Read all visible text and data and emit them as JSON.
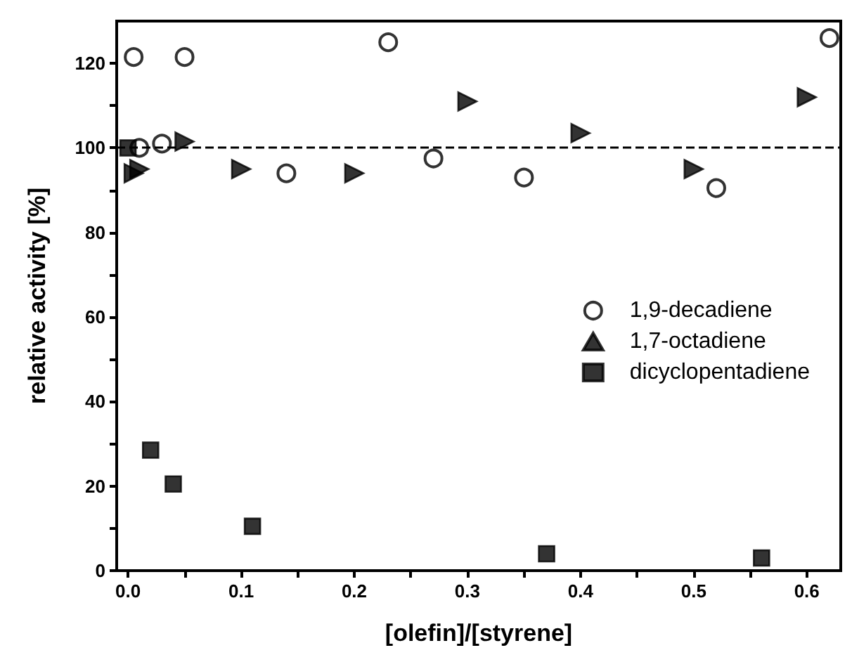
{
  "chart_data": {
    "type": "scatter",
    "xlabel": "[olefin]/[styrene]",
    "ylabel": "relative activity [%]",
    "xlim": [
      -0.01,
      0.63
    ],
    "xticks": [
      {
        "value": 0,
        "label": "0.0"
      },
      {
        "value": 0.05,
        "label": null
      },
      {
        "value": 0.1,
        "label": "0.1"
      },
      {
        "value": 0.15,
        "label": null
      },
      {
        "value": 0.2,
        "label": "0.2"
      },
      {
        "value": 0.25,
        "label": null
      },
      {
        "value": 0.3,
        "label": "0.3"
      },
      {
        "value": 0.35,
        "label": null
      },
      {
        "value": 0.4,
        "label": "0.4"
      },
      {
        "value": 0.45,
        "label": null
      },
      {
        "value": 0.5,
        "label": "0.5"
      },
      {
        "value": 0.55,
        "label": null
      },
      {
        "value": 0.6,
        "label": "0.6"
      }
    ],
    "ylim": [
      0,
      130
    ],
    "yticks": [
      0,
      {
        "value": 10,
        "label": null
      },
      20,
      {
        "value": 30,
        "label": null
      },
      40,
      {
        "value": 50,
        "label": null
      },
      60,
      {
        "value": 70,
        "label": null
      },
      80,
      {
        "value": 90,
        "label": null
      },
      100,
      {
        "value": 110,
        "label": null
      },
      120
    ],
    "grid": false,
    "legend": "right",
    "ref_lines": [
      {
        "axis": "y",
        "value": 100,
        "line_style": "dashed",
        "color": "#000000"
      }
    ],
    "series": [
      {
        "name": "1,9-decadiene",
        "color": "#000000",
        "marker": "circle",
        "x": [
          0.005,
          0.01,
          0.03,
          0.05,
          0.14,
          0.23,
          0.27,
          0.35,
          0.52,
          0.62
        ],
        "values": [
          121.5,
          100,
          101,
          121.5,
          94,
          125,
          97.5,
          93,
          90.5,
          126
        ]
      },
      {
        "name": "1,7-octadiene",
        "color": "#000000",
        "marker": "triangle",
        "x": [
          0.005,
          0.01,
          0.05,
          0.1,
          0.2,
          0.3,
          0.4,
          0.5,
          0.6
        ],
        "values": [
          94,
          95,
          101.5,
          95,
          94,
          111,
          103.5,
          95,
          112
        ]
      },
      {
        "name": "dicyclopentadiene",
        "color": "#000000",
        "marker": "square",
        "x": [
          0,
          0.02,
          0.04,
          0.11,
          0.37,
          0.56
        ],
        "values": [
          100,
          28.5,
          20.5,
          10.5,
          4,
          3
        ]
      }
    ]
  }
}
